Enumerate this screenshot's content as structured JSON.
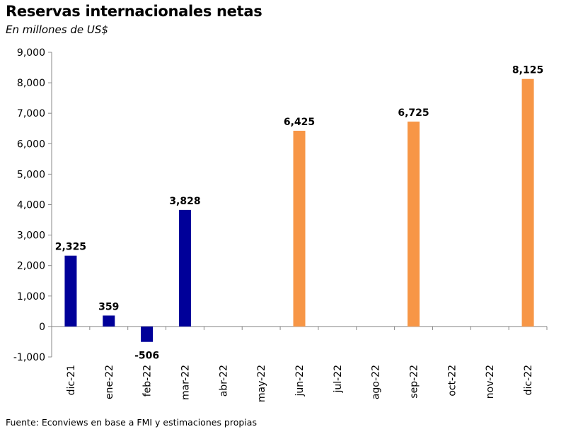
{
  "chart_data": {
    "type": "bar",
    "title": "Reservas internacionales netas",
    "subtitle": "En millones de US$",
    "source": "Fuente: Econviews en base a FMI y estimaciones propias",
    "categories": [
      "dic-21",
      "ene-22",
      "feb-22",
      "mar-22",
      "abr-22",
      "may-22",
      "jun-22",
      "jul-22",
      "ago-22",
      "sep-22",
      "oct-22",
      "nov-22",
      "dic-22"
    ],
    "series": [
      {
        "values": [
          2325,
          359,
          -506,
          3828,
          null,
          null,
          null,
          null,
          null,
          null,
          null,
          null,
          null
        ],
        "color": "#000099"
      },
      {
        "values": [
          null,
          null,
          null,
          null,
          null,
          null,
          6425,
          null,
          null,
          6725,
          null,
          null,
          8125
        ],
        "color": "#F79646"
      }
    ],
    "data_labels": [
      "2,325",
      "359",
      "-506",
      "3,828",
      "",
      "",
      "6,425",
      "",
      "",
      "6,725",
      "",
      "",
      "8,125"
    ],
    "y_ticks": [
      "-1,000",
      "0",
      "1,000",
      "2,000",
      "3,000",
      "4,000",
      "5,000",
      "6,000",
      "7,000",
      "8,000",
      "9,000"
    ],
    "ylim": [
      -1000,
      9000
    ],
    "grid": false,
    "legend": "none"
  }
}
